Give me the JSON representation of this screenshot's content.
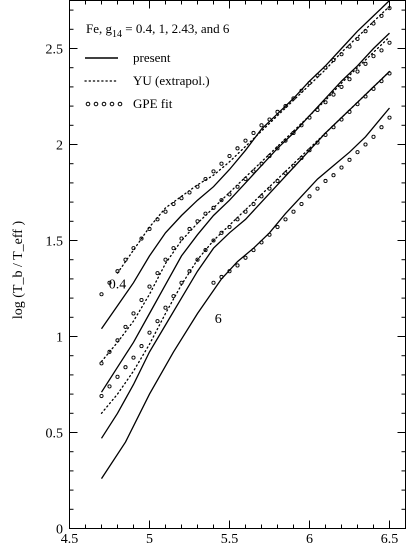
{
  "chart_data": {
    "type": "line",
    "title": "",
    "xlabel": "",
    "ylabel": "log (T_b / T_eff )",
    "xlim": [
      4.5,
      6.6
    ],
    "ylim": [
      0,
      2.75
    ],
    "xticks": [
      "4.5",
      "5",
      "5.5",
      "6",
      "6.5"
    ],
    "yticks": [
      "0",
      "0.5",
      "1",
      "1.5",
      "2",
      "2.5"
    ],
    "grid": false,
    "legend_position": "top-left",
    "legend": {
      "header": "Fe,   g",
      "header_sub": "14",
      "header_rest": " = 0.4, 1,  2.43, and 6",
      "entries": [
        {
          "label": "present",
          "style": "solid"
        },
        {
          "label": "YU (extrapol.)",
          "style": "dotted"
        },
        {
          "label": "GPE fit",
          "style": "circles"
        }
      ]
    },
    "annotations": [
      {
        "text": "0.4",
        "x": 4.8,
        "y": 1.25
      },
      {
        "text": "6",
        "x": 5.43,
        "y": 1.07
      }
    ],
    "series": [
      {
        "key": "g0.4",
        "style": "solid",
        "x": [
          4.7,
          4.8,
          4.9,
          5.0,
          5.1,
          5.2,
          5.3,
          5.4,
          5.5,
          5.6,
          5.7,
          5.8,
          5.9,
          6.0,
          6.1,
          6.2,
          6.3,
          6.4,
          6.5
        ],
        "values": [
          1.04,
          1.16,
          1.28,
          1.42,
          1.54,
          1.63,
          1.71,
          1.78,
          1.87,
          1.97,
          2.08,
          2.16,
          2.24,
          2.33,
          2.41,
          2.5,
          2.59,
          2.67,
          2.75
        ]
      },
      {
        "key": "g1",
        "style": "solid",
        "x": [
          4.7,
          4.8,
          4.9,
          5.0,
          5.1,
          5.2,
          5.3,
          5.4,
          5.5,
          5.6,
          5.7,
          5.8,
          5.9,
          6.0,
          6.1,
          6.2,
          6.3,
          6.4,
          6.5
        ],
        "values": [
          0.71,
          0.84,
          0.97,
          1.12,
          1.27,
          1.42,
          1.53,
          1.63,
          1.71,
          1.8,
          1.89,
          1.98,
          2.06,
          2.15,
          2.24,
          2.33,
          2.41,
          2.5,
          2.58
        ]
      },
      {
        "key": "g2.43",
        "style": "solid",
        "x": [
          4.7,
          4.8,
          4.9,
          5.0,
          5.1,
          5.2,
          5.3,
          5.4,
          5.5,
          5.6,
          5.7,
          5.8,
          5.9,
          6.0,
          6.1,
          6.2,
          6.3,
          6.4,
          6.5
        ],
        "values": [
          0.47,
          0.6,
          0.75,
          0.92,
          1.06,
          1.2,
          1.34,
          1.46,
          1.54,
          1.61,
          1.7,
          1.79,
          1.88,
          1.97,
          2.06,
          2.14,
          2.22,
          2.3,
          2.38
        ]
      },
      {
        "key": "g6",
        "style": "solid",
        "x": [
          4.7,
          4.85,
          5.0,
          5.15,
          5.3,
          5.45,
          5.55,
          5.65,
          5.75,
          5.85,
          5.95,
          6.05,
          6.15,
          6.25,
          6.35,
          6.45,
          6.5
        ],
        "values": [
          0.26,
          0.45,
          0.7,
          0.92,
          1.12,
          1.3,
          1.39,
          1.46,
          1.54,
          1.64,
          1.73,
          1.82,
          1.89,
          1.96,
          2.04,
          2.14,
          2.19
        ]
      },
      {
        "key": "yu0.4",
        "style": "dotted",
        "x": [
          4.8,
          4.9,
          5.0,
          5.1,
          5.2,
          5.3,
          5.4,
          5.5,
          5.6,
          5.7,
          5.8,
          5.9,
          6.0,
          6.1,
          6.2,
          6.3,
          6.4,
          6.5
        ],
        "values": [
          1.33,
          1.45,
          1.57,
          1.67,
          1.73,
          1.79,
          1.84,
          1.91,
          1.99,
          2.07,
          2.15,
          2.23,
          2.31,
          2.39,
          2.48,
          2.56,
          2.64,
          2.72
        ]
      },
      {
        "key": "yu1",
        "style": "dotted",
        "x": [
          4.7,
          4.8,
          4.9,
          5.0,
          5.1,
          5.2,
          5.3,
          5.4,
          5.5,
          5.6,
          5.7,
          5.8,
          5.9,
          6.0,
          6.1,
          6.2,
          6.3,
          6.4,
          6.5
        ],
        "values": [
          0.87,
          0.97,
          1.08,
          1.22,
          1.38,
          1.5,
          1.59,
          1.67,
          1.75,
          1.83,
          1.91,
          1.99,
          2.07,
          2.15,
          2.23,
          2.32,
          2.4,
          2.48,
          2.56
        ]
      },
      {
        "key": "yu2.43",
        "style": "dotted",
        "x": [
          4.7,
          4.8,
          4.9,
          5.0,
          5.1,
          5.2,
          5.3,
          5.4,
          5.5,
          5.6,
          5.7,
          5.8,
          5.9,
          6.0,
          6.1,
          6.2,
          6.3,
          6.4,
          6.5
        ],
        "values": [
          0.6,
          0.7,
          0.82,
          0.96,
          1.12,
          1.27,
          1.4,
          1.5,
          1.58,
          1.66,
          1.74,
          1.82,
          1.9,
          1.98,
          2.06,
          2.14,
          2.22,
          2.3,
          2.38
        ]
      },
      {
        "key": "gpe0.4",
        "style": "circles",
        "x": [
          4.7,
          4.75,
          4.8,
          4.85,
          4.9,
          4.95,
          5.0,
          5.05,
          5.1,
          5.15,
          5.2,
          5.25,
          5.3,
          5.35,
          5.4,
          5.45,
          5.5,
          5.55,
          5.6,
          5.65,
          5.7,
          5.75,
          5.8,
          5.85,
          5.9,
          5.95,
          6.0,
          6.05,
          6.1,
          6.15,
          6.2,
          6.25,
          6.3,
          6.35,
          6.4,
          6.45,
          6.5
        ],
        "values": [
          1.22,
          1.28,
          1.34,
          1.4,
          1.46,
          1.51,
          1.56,
          1.61,
          1.65,
          1.69,
          1.72,
          1.75,
          1.78,
          1.82,
          1.86,
          1.9,
          1.94,
          1.98,
          2.02,
          2.06,
          2.1,
          2.13,
          2.17,
          2.2,
          2.24,
          2.28,
          2.32,
          2.36,
          2.4,
          2.44,
          2.47,
          2.51,
          2.55,
          2.59,
          2.63,
          2.67,
          2.71
        ]
      },
      {
        "key": "gpe1",
        "style": "circles",
        "x": [
          4.7,
          4.75,
          4.8,
          4.85,
          4.9,
          4.95,
          5.0,
          5.05,
          5.1,
          5.15,
          5.2,
          5.25,
          5.3,
          5.35,
          5.4,
          5.45,
          5.5,
          5.55,
          5.6,
          5.65,
          5.7,
          5.75,
          5.8,
          5.85,
          5.9,
          5.95,
          6.0,
          6.05,
          6.1,
          6.15,
          6.2,
          6.25,
          6.3,
          6.35,
          6.4,
          6.45,
          6.5
        ],
        "values": [
          0.86,
          0.92,
          0.98,
          1.05,
          1.12,
          1.19,
          1.26,
          1.33,
          1.4,
          1.46,
          1.51,
          1.56,
          1.6,
          1.64,
          1.67,
          1.71,
          1.74,
          1.78,
          1.82,
          1.86,
          1.9,
          1.94,
          1.98,
          2.02,
          2.06,
          2.1,
          2.14,
          2.18,
          2.22,
          2.26,
          2.3,
          2.34,
          2.38,
          2.42,
          2.46,
          2.49,
          2.53
        ]
      },
      {
        "key": "gpe2.43",
        "style": "circles",
        "x": [
          4.7,
          4.75,
          4.8,
          4.85,
          4.9,
          4.95,
          5.0,
          5.05,
          5.1,
          5.15,
          5.2,
          5.25,
          5.3,
          5.35,
          5.4,
          5.45,
          5.5,
          5.55,
          5.6,
          5.65,
          5.7,
          5.75,
          5.8,
          5.85,
          5.9,
          5.95,
          6.0,
          6.05,
          6.1,
          6.15,
          6.2,
          6.25,
          6.3,
          6.35,
          6.4,
          6.45,
          6.5
        ],
        "values": [
          0.69,
          0.74,
          0.79,
          0.84,
          0.89,
          0.95,
          1.02,
          1.08,
          1.15,
          1.21,
          1.28,
          1.34,
          1.4,
          1.45,
          1.5,
          1.54,
          1.57,
          1.61,
          1.65,
          1.69,
          1.73,
          1.77,
          1.81,
          1.85,
          1.89,
          1.93,
          1.97,
          2.01,
          2.05,
          2.09,
          2.13,
          2.17,
          2.21,
          2.25,
          2.29,
          2.33,
          2.37
        ]
      },
      {
        "key": "gpe6",
        "style": "circles",
        "x": [
          5.4,
          5.45,
          5.5,
          5.55,
          5.6,
          5.65,
          5.7,
          5.75,
          5.8,
          5.85,
          5.9,
          5.95,
          6.0,
          6.05,
          6.1,
          6.15,
          6.2,
          6.25,
          6.3,
          6.35,
          6.4,
          6.45,
          6.5
        ],
        "values": [
          1.28,
          1.31,
          1.34,
          1.37,
          1.41,
          1.45,
          1.49,
          1.53,
          1.57,
          1.61,
          1.65,
          1.69,
          1.73,
          1.77,
          1.81,
          1.84,
          1.88,
          1.92,
          1.96,
          2.0,
          2.04,
          2.09,
          2.14
        ]
      }
    ]
  }
}
